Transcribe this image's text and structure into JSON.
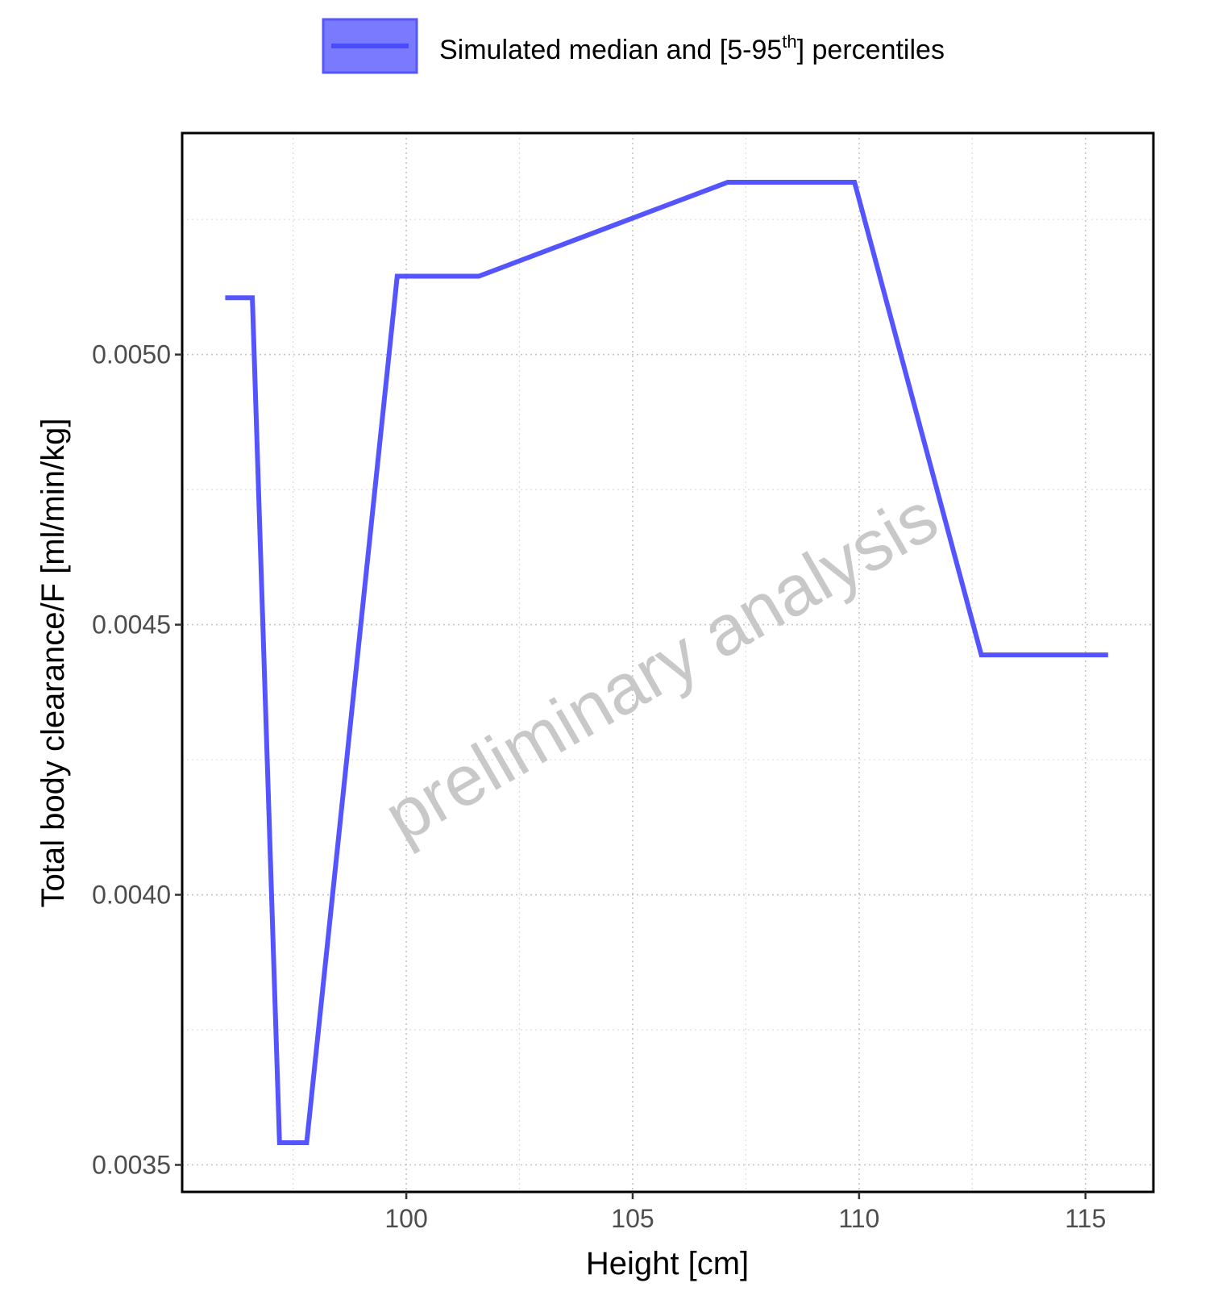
{
  "chart_data": {
    "type": "line",
    "title": "",
    "xlabel": "Height [cm]",
    "ylabel": "Total body clearance/F [ml/min/kg]",
    "xlim": [
      95.05,
      116.5
    ],
    "ylim": [
      0.00345,
      0.00541
    ],
    "x_ticks": [
      100,
      105,
      110,
      115
    ],
    "x_tick_labels": [
      "100",
      "105",
      "110",
      "115"
    ],
    "y_ticks": [
      0.0035,
      0.004,
      0.0045,
      0.005
    ],
    "y_tick_labels": [
      "0.0035",
      "0.0040",
      "0.0045",
      "0.0050"
    ],
    "grid": true,
    "legend_position": "top",
    "legend": {
      "label_main": "Simulated median and [5-95",
      "label_sup": "th",
      "label_end": "] percentiles"
    },
    "watermark": "preliminary analysis",
    "series": [
      {
        "color": "#5555ff",
        "x": [
          96.0,
          96.6,
          97.2,
          97.8,
          99.8,
          101.6,
          107.1,
          109.9,
          112.7,
          115.5
        ],
        "y": [
          0.005105,
          0.005105,
          0.003541,
          0.003541,
          0.005145,
          0.005145,
          0.005319,
          0.005319,
          0.004444,
          0.004444
        ]
      }
    ]
  }
}
